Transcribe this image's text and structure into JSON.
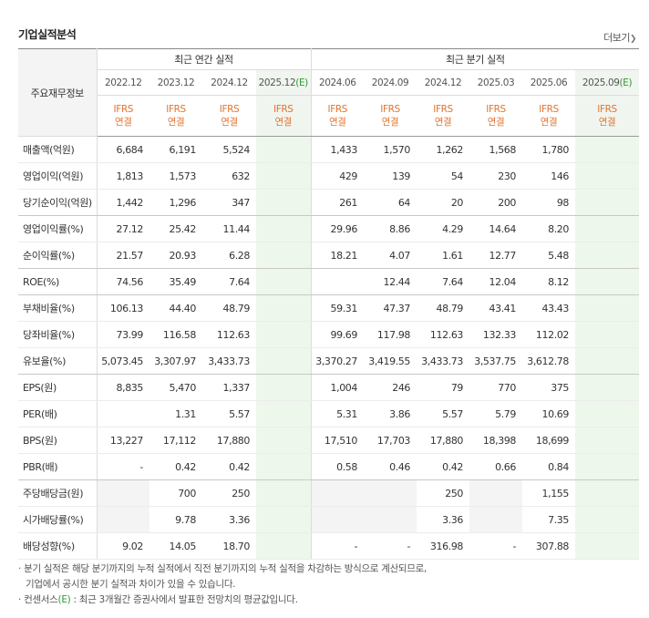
{
  "title": "기업실적분석",
  "more_label": "더보기",
  "row_header": "주요재무정보",
  "groups": {
    "annual": "최근 연간 실적",
    "quarter": "최근 분기 실적"
  },
  "periods": [
    {
      "date": "2022.12",
      "est": false
    },
    {
      "date": "2023.12",
      "est": false
    },
    {
      "date": "2024.12",
      "est": false
    },
    {
      "date": "2025.12",
      "est": true
    },
    {
      "date": "2024.06",
      "est": false
    },
    {
      "date": "2024.09",
      "est": false
    },
    {
      "date": "2024.12",
      "est": false
    },
    {
      "date": "2025.03",
      "est": false
    },
    {
      "date": "2025.06",
      "est": false
    },
    {
      "date": "2025.09",
      "est": true
    }
  ],
  "est_mark": "(E)",
  "standard": {
    "line1": "IFRS",
    "line2": "연결"
  },
  "rows": [
    {
      "label": "매출액(억원)",
      "values": [
        "6,684",
        "6,191",
        "5,524",
        "",
        "1,433",
        "1,570",
        "1,262",
        "1,568",
        "1,780",
        ""
      ]
    },
    {
      "label": "영업이익(억원)",
      "values": [
        "1,813",
        "1,573",
        "632",
        "",
        "429",
        "139",
        "54",
        "230",
        "146",
        ""
      ]
    },
    {
      "label": "당기순이익(억원)",
      "values": [
        "1,442",
        "1,296",
        "347",
        "",
        "261",
        "64",
        "20",
        "200",
        "98",
        ""
      ]
    },
    {
      "label": "영업이익률(%)",
      "values": [
        "27.12",
        "25.42",
        "11.44",
        "",
        "29.96",
        "8.86",
        "4.29",
        "14.64",
        "8.20",
        ""
      ]
    },
    {
      "label": "순이익률(%)",
      "values": [
        "21.57",
        "20.93",
        "6.28",
        "",
        "18.21",
        "4.07",
        "1.61",
        "12.77",
        "5.48",
        ""
      ]
    },
    {
      "label": "ROE(%)",
      "values": [
        "74.56",
        "35.49",
        "7.64",
        "",
        "",
        "12.44",
        "7.64",
        "12.04",
        "8.12",
        ""
      ]
    },
    {
      "label": "부채비율(%)",
      "values": [
        "106.13",
        "44.40",
        "48.79",
        "",
        "59.31",
        "47.37",
        "48.79",
        "43.41",
        "43.43",
        ""
      ]
    },
    {
      "label": "당좌비율(%)",
      "values": [
        "73.99",
        "116.58",
        "112.63",
        "",
        "99.69",
        "117.98",
        "112.63",
        "132.33",
        "112.02",
        ""
      ]
    },
    {
      "label": "유보율(%)",
      "values": [
        "5,073.45",
        "3,307.97",
        "3,433.73",
        "",
        "3,370.27",
        "3,419.55",
        "3,433.73",
        "3,537.75",
        "3,612.78",
        ""
      ]
    },
    {
      "label": "EPS(원)",
      "values": [
        "8,835",
        "5,470",
        "1,337",
        "",
        "1,004",
        "246",
        "79",
        "770",
        "375",
        ""
      ]
    },
    {
      "label": "PER(배)",
      "values": [
        "",
        "1.31",
        "5.57",
        "",
        "5.31",
        "3.86",
        "5.57",
        "5.79",
        "10.69",
        ""
      ]
    },
    {
      "label": "BPS(원)",
      "values": [
        "13,227",
        "17,112",
        "17,880",
        "",
        "17,510",
        "17,703",
        "17,880",
        "18,398",
        "18,699",
        ""
      ]
    },
    {
      "label": "PBR(배)",
      "values": [
        "-",
        "0.42",
        "0.42",
        "",
        "0.58",
        "0.46",
        "0.42",
        "0.66",
        "0.84",
        ""
      ]
    },
    {
      "label": "주당배당금(원)",
      "values": [
        "",
        "700",
        "250",
        "",
        "",
        "",
        "250",
        "",
        "1,155",
        ""
      ]
    },
    {
      "label": "시가배당률(%)",
      "values": [
        "",
        "9.78",
        "3.36",
        "",
        "",
        "",
        "3.36",
        "",
        "7.35",
        ""
      ]
    },
    {
      "label": "배당성향(%)",
      "values": [
        "9.02",
        "14.05",
        "18.70",
        "",
        "-",
        "-",
        "316.98",
        "-",
        "307.88",
        ""
      ]
    }
  ],
  "notes": {
    "line1": "분기 실적은 해당 분기까지의 누적 실적에서 직전 분기까지의 누적 실적을 차감하는 방식으로 계산되므로,",
    "line2": "기업에서 공시한 분기 실적과 차이가 있을 수 있습니다.",
    "line3_prefix": "컨센서스",
    "line3_mark": "(E)",
    "line3_rest": " : 최근 3개월간 증권사에서 발표한 전망치의 평균값입니다."
  }
}
